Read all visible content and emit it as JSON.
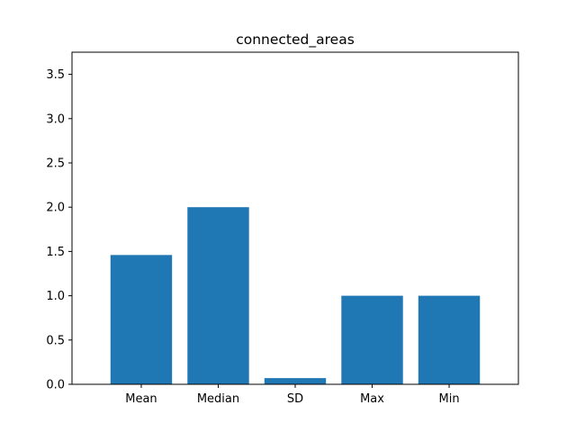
{
  "chart_data": {
    "type": "bar",
    "title": "connected_areas",
    "categories": [
      "Mean",
      "Median",
      "SD",
      "Max",
      "Min"
    ],
    "values": [
      1.46,
      2.0,
      0.07,
      1.0,
      1.0
    ],
    "ylim": [
      0,
      3.75
    ],
    "yticks": [
      "0.0",
      "0.5",
      "1.0",
      "1.5",
      "2.0",
      "2.5",
      "3.0",
      "3.5"
    ],
    "xlabel": "",
    "ylabel": "",
    "grid": false,
    "colors": {
      "bar": "#1f77b4",
      "axis": "#000000"
    }
  }
}
